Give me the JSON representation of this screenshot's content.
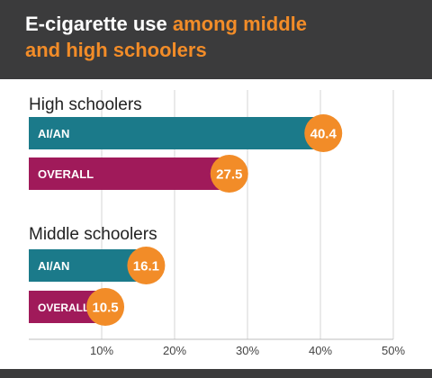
{
  "header": {
    "title_plain": "E-cigarette use",
    "title_accent_1": "among middle",
    "title_accent_2": "and high schoolers"
  },
  "colors": {
    "header_bg": "#3b3b3c",
    "accent": "#f28c28",
    "ai_an_bar": "#1b7a8a",
    "overall_bar": "#a01a5a",
    "grid": "#d4d4d4"
  },
  "chart_data": {
    "type": "bar",
    "orientation": "horizontal",
    "xlim": [
      0,
      50
    ],
    "ticks": [
      10,
      20,
      30,
      40,
      50
    ],
    "tick_labels": [
      "10%",
      "20%",
      "30%",
      "40%",
      "50%"
    ],
    "grid": true,
    "groups": [
      {
        "name": "High schoolers",
        "bars": [
          {
            "label": "AI/AN",
            "value": 40.4
          },
          {
            "label": "OVERALL",
            "value": 27.5
          }
        ]
      },
      {
        "name": "Middle schoolers",
        "bars": [
          {
            "label": "AI/AN",
            "value": 16.1
          },
          {
            "label": "OVERALL",
            "value": 10.5
          }
        ]
      }
    ]
  }
}
